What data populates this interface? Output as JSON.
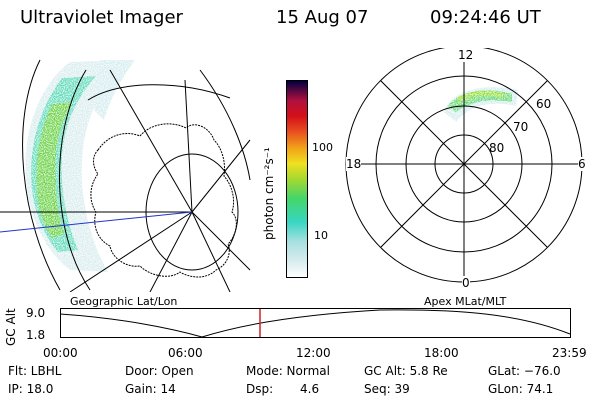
{
  "header": {
    "instrument": "Ultraviolet Imager",
    "date": "15 Aug 07",
    "time": "09:24:46 UT"
  },
  "colorbar": {
    "unit_label": "photon cm⁻²s⁻¹",
    "ticks": [
      "100",
      "10"
    ]
  },
  "polar_plot": {
    "mlt_labels": [
      "12",
      "18",
      "6",
      "0"
    ],
    "mlat_labels": [
      "60",
      "70",
      "80"
    ]
  },
  "map_titles": {
    "left": "Geographic Lat/Lon",
    "right": "Apex MLat/MLT"
  },
  "altitude_chart": {
    "ylabel": "GC Alt",
    "yticks": [
      "9.0",
      "1.8"
    ],
    "xticks": [
      "00:00",
      "06:00",
      "12:00",
      "18:00",
      "23:59"
    ]
  },
  "status": {
    "flt": "Flt: LBHL",
    "ip": "IP: 18.0",
    "door": "Door: Open",
    "gain": "Gain: 14",
    "mode": "Mode: Normal",
    "dsp_label": "Dsp:",
    "dsp_value": "4.6",
    "gc_alt": "GC Alt: 5.8 Re",
    "seq": "Seq: 39",
    "glat": "GLat: −76.0",
    "glon": "GLon: 74.1"
  },
  "colors": {
    "marker": "#cc2222",
    "meridian": "#2233cc"
  }
}
